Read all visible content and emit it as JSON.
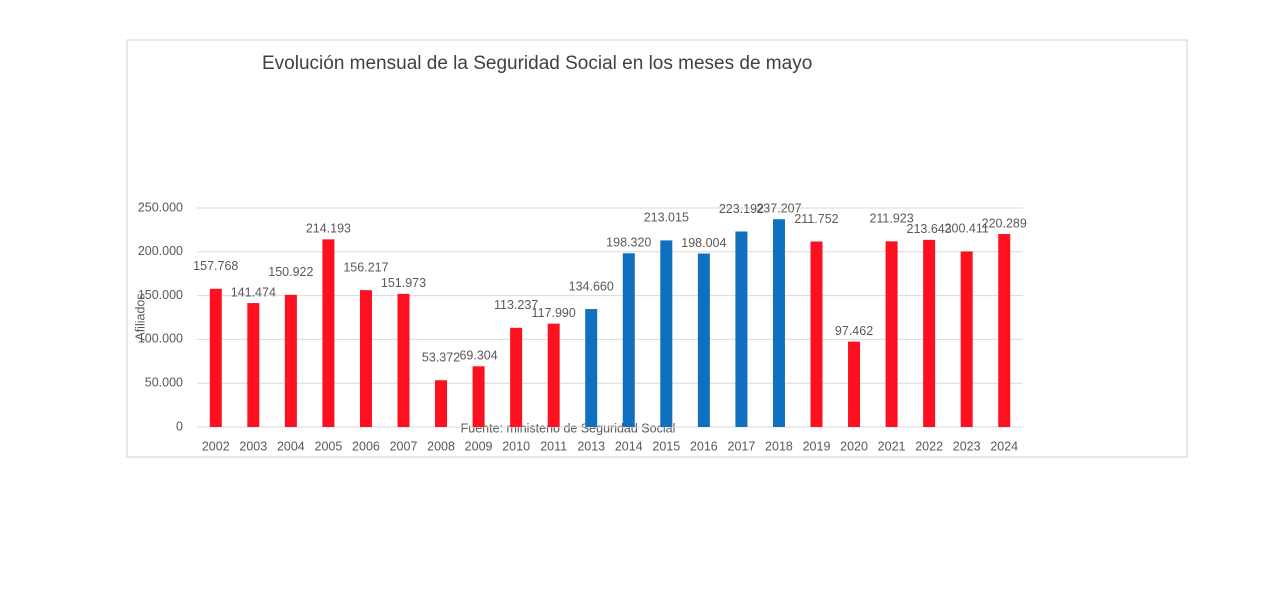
{
  "chart_data": {
    "type": "bar",
    "title": "Evolución mensual de la Seguridad Social en los meses de mayo",
    "y_label": "Afiliados",
    "source": "Fuente: ministerio de Seguridad Social",
    "categories": [
      "2002",
      "2003",
      "2004",
      "2005",
      "2006",
      "2007",
      "2008",
      "2009",
      "2010",
      "2011",
      "2013",
      "2014",
      "2015",
      "2016",
      "2017",
      "2018",
      "2019",
      "2020",
      "2021",
      "2022",
      "2023",
      "2024"
    ],
    "values": [
      157768,
      141474,
      150922,
      214193,
      156217,
      151973,
      53372,
      69304,
      113237,
      117990,
      134660,
      198320,
      213015,
      198004,
      223192,
      237207,
      211752,
      97462,
      211923,
      213643,
      200411,
      220289
    ],
    "value_labels": [
      "157.768",
      "141.474",
      "150.922",
      "214.193",
      "156.217",
      "151.973",
      "53.372",
      "69.304",
      "113.237",
      "117.990",
      "134.660",
      "198.320",
      "213.015",
      "198.004",
      "223.192",
      "237.207",
      "211.752",
      "97.462",
      "211.923",
      "213.643",
      "200.411",
      "220.289"
    ],
    "colors": [
      "#ff1020",
      "#ff1020",
      "#ff1020",
      "#ff1020",
      "#ff1020",
      "#ff1020",
      "#ff1020",
      "#ff1020",
      "#ff1020",
      "#ff1020",
      "#1070c0",
      "#1070c0",
      "#1070c0",
      "#1070c0",
      "#1070c0",
      "#1070c0",
      "#ff1020",
      "#ff1020",
      "#ff1020",
      "#ff1020",
      "#ff1020",
      "#ff1020"
    ],
    "ylim": [
      0,
      250000
    ],
    "yticks": [
      0,
      {
        "value": 50000,
        "label": "50.000"
      },
      {
        "value": 100000,
        "label": "100.000"
      },
      {
        "value": 150000,
        "label": "150.000"
      },
      {
        "value": 200000,
        "label": "200.000"
      },
      {
        "value": 250000,
        "label": "250.000"
      }
    ],
    "grid": true
  }
}
